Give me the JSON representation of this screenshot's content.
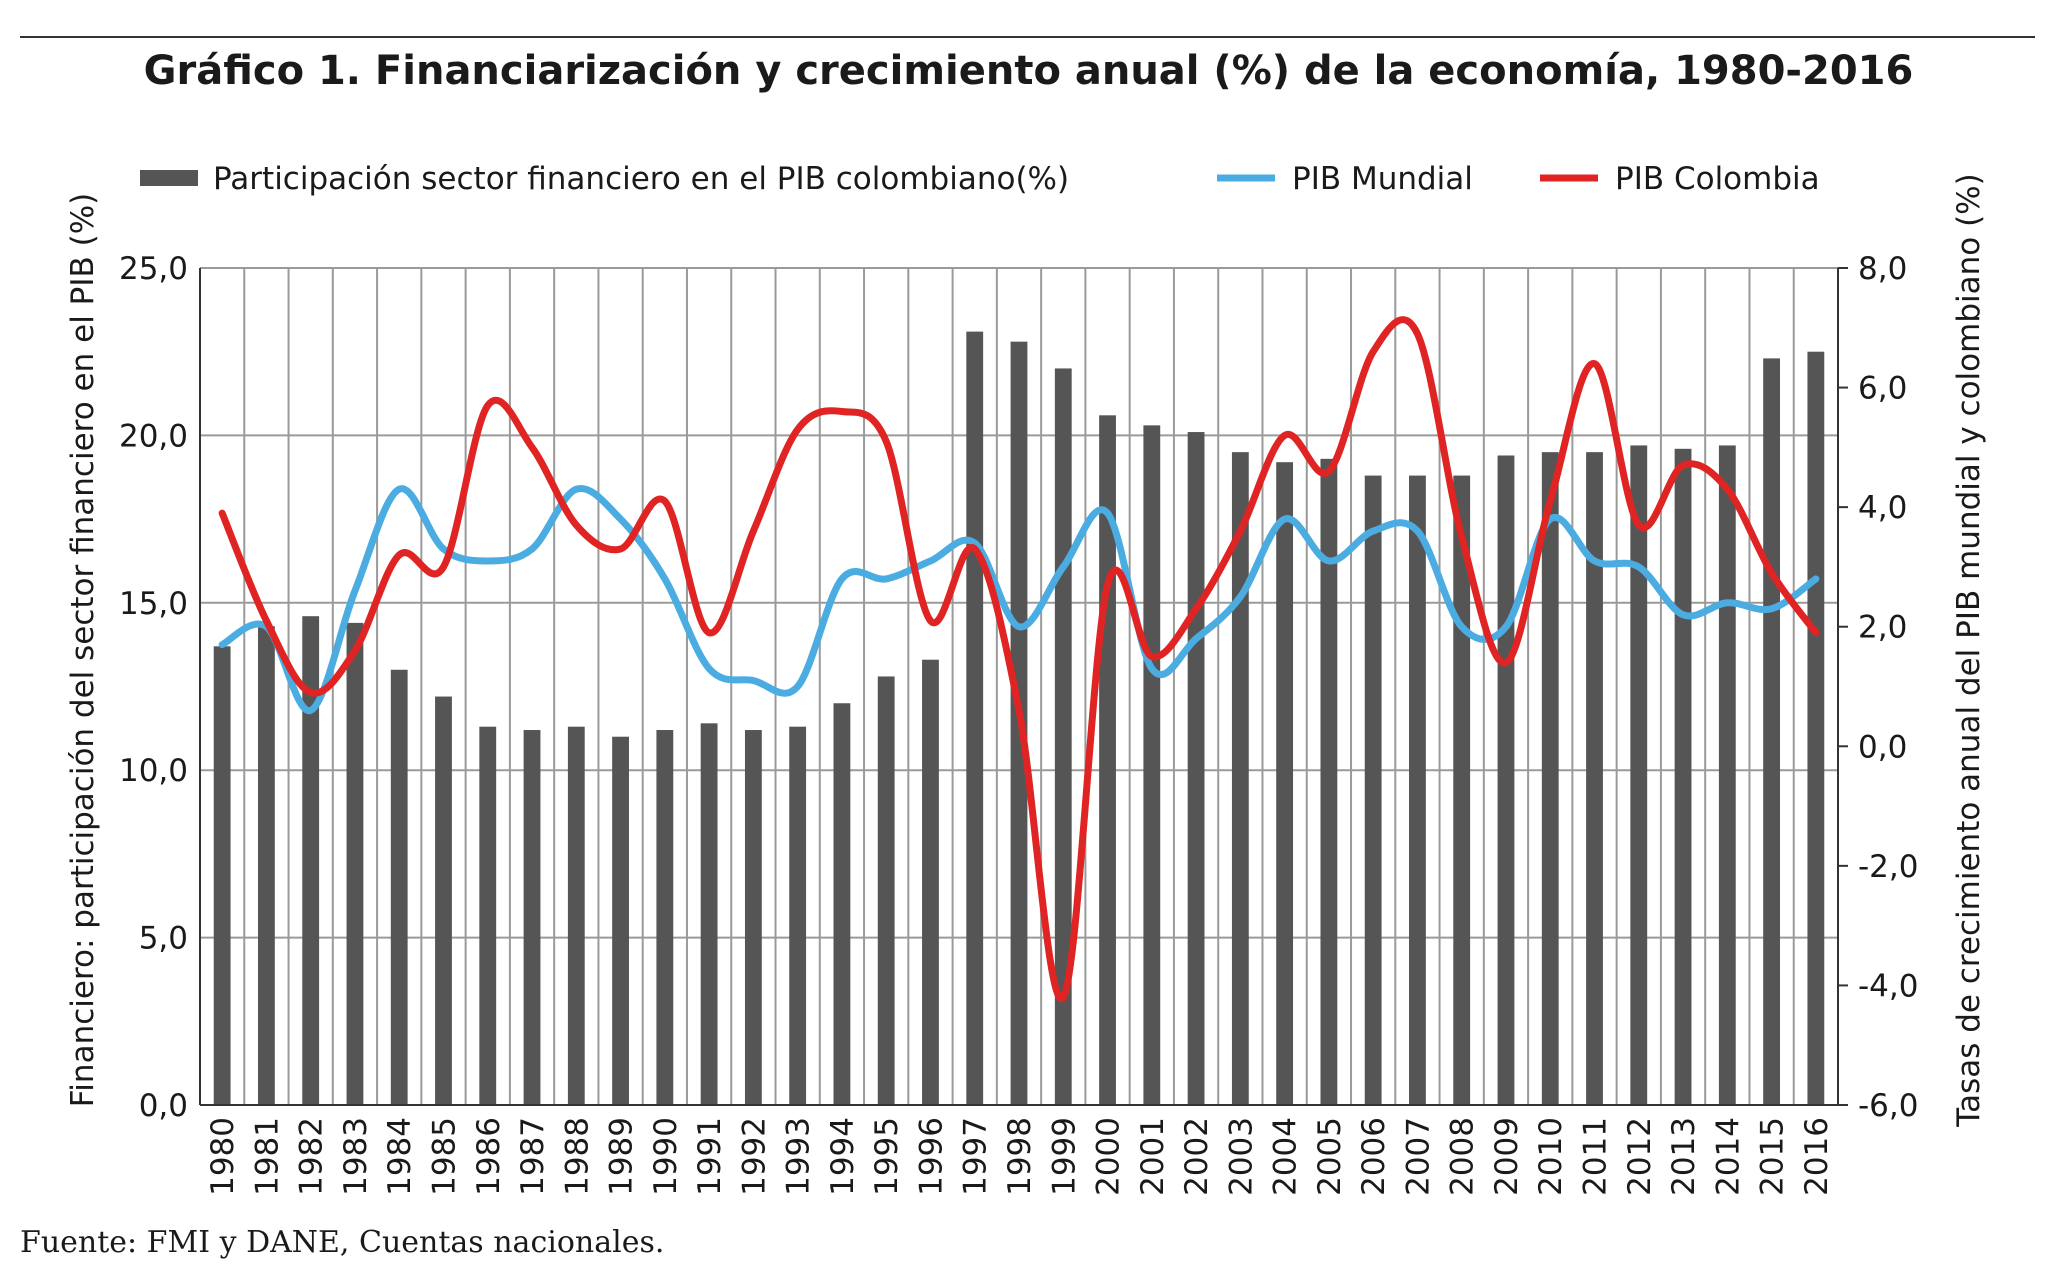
{
  "chart_data": {
    "type": "bar",
    "title": "Gráfico 1. Financiarización y crecimiento anual (%) de la economía, 1980-2016",
    "source": "Fuente: FMI y DANE, Cuentas nacionales.",
    "ylabel": "Financiero: participación del sector financiero en el PIB (%)",
    "y2label": "Tasas de crecimiento anual del PIB mundial y colombiano (%)",
    "ylim": [
      0,
      25
    ],
    "y2lim": [
      -6,
      8
    ],
    "yticks": [
      "0,0",
      "5,0",
      "10,0",
      "15,0",
      "20,0",
      "25,0"
    ],
    "y2ticks": [
      "-6,0",
      "-4,0",
      "-2,0",
      "0,0",
      "2,0",
      "4,0",
      "6,0",
      "8,0"
    ],
    "grid": "horizontal and vertical",
    "legend_position": "top",
    "categories": [
      "1980",
      "1981",
      "1982",
      "1983",
      "1984",
      "1985",
      "1986",
      "1987",
      "1988",
      "1989",
      "1990",
      "1991",
      "1992",
      "1993",
      "1994",
      "1995",
      "1996",
      "1997",
      "1998",
      "1999",
      "2000",
      "2001",
      "2002",
      "2003",
      "2004",
      "2005",
      "2006",
      "2007",
      "2008",
      "2009",
      "2010",
      "2011",
      "2012",
      "2013",
      "2014",
      "2015",
      "2016"
    ],
    "series": [
      {
        "name": "Participación sector financiero en el PIB colombiano(%)",
        "kind": "bar",
        "axis": "left",
        "color": "#555555",
        "values": [
          13.7,
          14.3,
          14.6,
          14.4,
          13.0,
          12.2,
          11.3,
          11.2,
          11.3,
          11.0,
          11.2,
          11.4,
          11.2,
          11.3,
          12.0,
          12.8,
          13.3,
          23.1,
          22.8,
          22.0,
          20.6,
          20.3,
          20.1,
          19.5,
          19.2,
          19.3,
          18.8,
          18.8,
          18.8,
          19.4,
          19.5,
          19.5,
          19.7,
          19.6,
          19.7,
          22.3,
          22.5
        ]
      },
      {
        "name": "PIB Mundial",
        "kind": "line",
        "axis": "right",
        "color": "#4aace0",
        "values": [
          1.7,
          2.0,
          0.6,
          2.6,
          4.3,
          3.3,
          3.1,
          3.3,
          4.3,
          3.8,
          2.8,
          1.3,
          1.1,
          1.0,
          2.8,
          2.8,
          3.1,
          3.4,
          2.0,
          3.0,
          3.9,
          1.3,
          1.8,
          2.5,
          3.8,
          3.1,
          3.6,
          3.6,
          2.0,
          2.0,
          3.8,
          3.1,
          3.0,
          2.2,
          2.4,
          2.3,
          2.8
        ]
      },
      {
        "name": "PIB Colombia",
        "kind": "line",
        "axis": "right",
        "color": "#e02424",
        "values": [
          3.9,
          2.1,
          0.9,
          1.6,
          3.2,
          3.0,
          5.7,
          5.0,
          3.7,
          3.3,
          4.1,
          1.9,
          3.6,
          5.3,
          5.6,
          5.1,
          2.1,
          3.3,
          0.6,
          -4.2,
          2.7,
          1.5,
          2.3,
          3.6,
          5.2,
          4.6,
          6.6,
          6.9,
          3.5,
          1.4,
          4.1,
          6.4,
          3.7,
          4.7,
          4.3,
          2.9,
          1.9
        ]
      }
    ]
  }
}
